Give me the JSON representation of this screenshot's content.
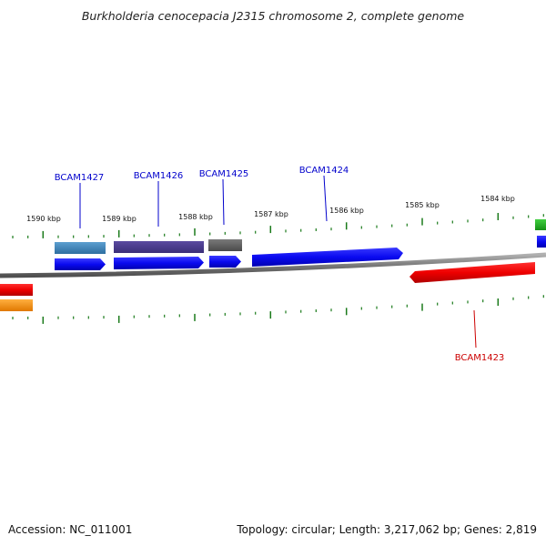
{
  "title": "Burkholderia cenocepacia J2315 chromosome 2, complete genome",
  "footer": {
    "accession": "Accession: NC_011001",
    "summary": "Topology: circular; Length: 3,217,062 bp; Genes: 2,819"
  },
  "scale_labels": [
    "1590 kbp",
    "1589 kbp",
    "1588 kbp",
    "1587 kbp",
    "1586 kbp",
    "1585 kbp",
    "1584 kbp"
  ],
  "gene_labels": [
    {
      "name": "BCAM1427",
      "color": "#0000cc"
    },
    {
      "name": "BCAM1426",
      "color": "#0000cc"
    },
    {
      "name": "BCAM1425",
      "color": "#0000cc"
    },
    {
      "name": "BCAM1424",
      "color": "#0000cc"
    },
    {
      "name": "BCAM1423",
      "color": "#cc0000"
    }
  ],
  "colors": {
    "forward_gene": "#0a0af0",
    "reverse_gene": "#ee0000",
    "backbone": "#888888",
    "ticks": "#1a7a1a"
  }
}
